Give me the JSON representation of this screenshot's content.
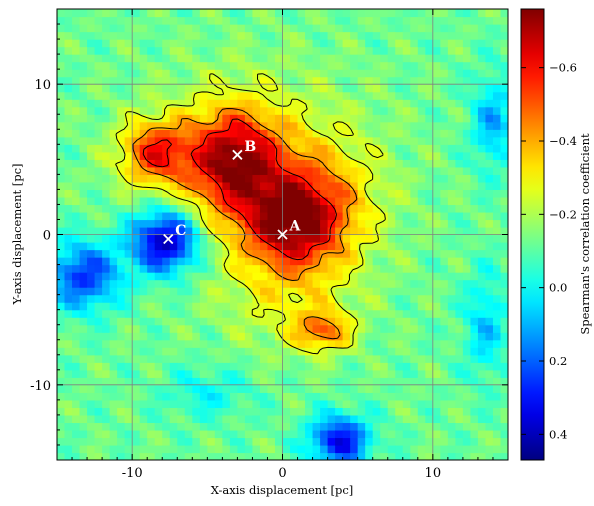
{
  "chart_data": {
    "type": "heatmap",
    "title": "",
    "xlabel": "X-axis displacement [pc]",
    "ylabel": "Y-axis displacement [pc]",
    "xlim": [
      -15,
      15
    ],
    "ylim": [
      -15,
      15
    ],
    "x_ticks": [
      -10,
      0,
      10
    ],
    "y_ticks": [
      -10,
      0,
      10
    ],
    "grid": true,
    "colorbar": {
      "label": "Spearman's correlation coefficient",
      "range": [
        0.47,
        -0.76
      ],
      "ticks": [
        -0.6,
        -0.4,
        -0.2,
        0.0,
        0.2,
        0.4
      ],
      "colormap": "jet (reversed: red = negative, blue = positive)"
    },
    "markers": [
      {
        "label": "A",
        "x": 0.0,
        "y": 0.0
      },
      {
        "label": "B",
        "x": -3.0,
        "y": 5.3
      },
      {
        "label": "C",
        "x": -7.6,
        "y": -0.3
      }
    ],
    "contours": "black contour lines outlining the negative-correlation region",
    "colors": {
      "frame": "#000000",
      "grid": "#808080",
      "marker": "#ffffff"
    }
  }
}
